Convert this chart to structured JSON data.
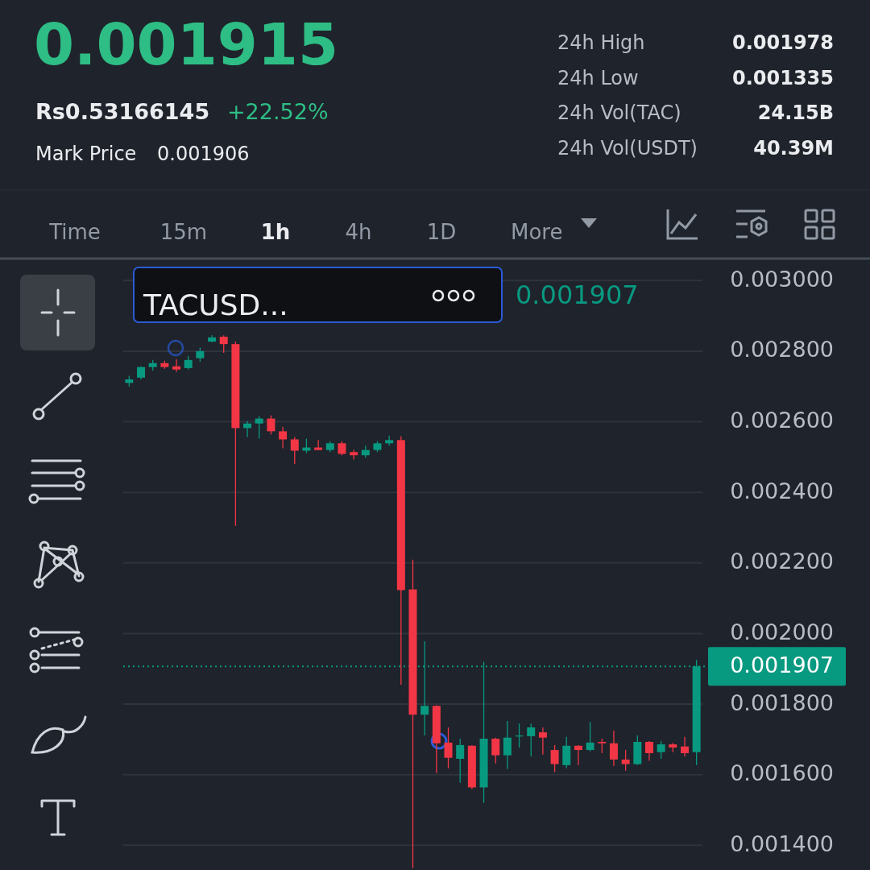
{
  "chart_data": {
    "type": "candlestick",
    "title": "0.001915",
    "annotations": [
      "Rs0.53166145",
      "+22.52%",
      "Mark Price",
      "0.001906",
      "24h High",
      "0.001978",
      "24h Low",
      "0.001335",
      "24h Vol(TAC)",
      "24.15B",
      "24h Vol(USDT)",
      "40.39M",
      "Time",
      "15m",
      "1h",
      "4h",
      "1D",
      "More",
      "TACUSD...",
      "0.001907"
    ],
    "categories": [
      null,
      null,
      null,
      null,
      null,
      null,
      null,
      null,
      null,
      null,
      null,
      null,
      null,
      null,
      null,
      null,
      null,
      null,
      null,
      null,
      null,
      null,
      null,
      null,
      null,
      null,
      null,
      null,
      null,
      null,
      null,
      null,
      null,
      null,
      null,
      null,
      null,
      null,
      null,
      null,
      null,
      null,
      null,
      null,
      null,
      null,
      null,
      null,
      null
    ],
    "ylim": [
      0.00133,
      0.00306
    ],
    "yticks": [
      {
        "value": 0.0014,
        "label": "0.001400"
      },
      {
        "value": 0.0016,
        "label": "0.001600"
      },
      {
        "value": 0.0018,
        "label": "0.001800"
      },
      {
        "value": 0.002,
        "label": "0.002000"
      },
      {
        "value": 0.0022,
        "label": "0.002200"
      },
      {
        "value": 0.0024,
        "label": "0.002400"
      },
      {
        "value": 0.0026,
        "label": "0.002600"
      },
      {
        "value": 0.0028,
        "label": "0.002800"
      },
      {
        "value": 0.003,
        "label": "0.003000"
      }
    ],
    "grid": "y",
    "colors": [
      "#089981",
      "#089981",
      "#089981",
      "#f23645",
      "#f23645",
      "#089981",
      "#089981",
      "#089981",
      "#f23645",
      "#f23645",
      "#089981",
      "#089981",
      "#f23645",
      "#f23645",
      "#f23645",
      "#089981",
      "#f23645",
      "#089981",
      "#f23645",
      "#f23645",
      "#089981",
      "#089981",
      "#089981",
      "#f23645",
      "#f23645",
      "#089981",
      "#f23645",
      "#f23645",
      "#089981",
      "#f23645",
      "#089981",
      "#f23645",
      "#089981",
      "#089981",
      "#089981",
      "#f23645",
      "#f23645",
      "#089981",
      "#f23645",
      "#089981",
      "#f23645",
      "#f23645",
      "#f23645",
      "#089981",
      "#f23645",
      "#089981",
      "#f23645",
      "#f23645",
      "#089981"
    ],
    "ref_lines": [
      {
        "axis": "y",
        "value": 0.001907,
        "label": "0.001907",
        "color": "#089981",
        "line_style": "dotted"
      }
    ],
    "ohlc": [
      [
        0.00271,
        0.00273,
        0.0027,
        0.00272
      ],
      [
        0.002725,
        0.002757,
        0.00272,
        0.002755
      ],
      [
        0.002755,
        0.002775,
        0.002745,
        0.002766
      ],
      [
        0.002766,
        0.002773,
        0.00275,
        0.002755
      ],
      [
        0.002757,
        0.002777,
        0.002741,
        0.002748
      ],
      [
        0.002752,
        0.002786,
        0.002748,
        0.002775
      ],
      [
        0.00278,
        0.00281,
        0.00277,
        0.0028
      ],
      [
        0.002827,
        0.002845,
        0.002825,
        0.002839
      ],
      [
        0.002841,
        0.002845,
        0.002795,
        0.00282
      ],
      [
        0.00282,
        0.002827,
        0.002305,
        0.002582
      ],
      [
        0.002582,
        0.002602,
        0.002557,
        0.002595
      ],
      [
        0.002595,
        0.002616,
        0.002552,
        0.002609
      ],
      [
        0.002609,
        0.002618,
        0.002564,
        0.002573
      ],
      [
        0.002573,
        0.002586,
        0.002525,
        0.00255
      ],
      [
        0.00255,
        0.002557,
        0.00248,
        0.002518
      ],
      [
        0.002518,
        0.002552,
        0.002511,
        0.002527
      ],
      [
        0.002527,
        0.002548,
        0.00252,
        0.00252
      ],
      [
        0.00252,
        0.002545,
        0.002514,
        0.002539
      ],
      [
        0.002539,
        0.002545,
        0.002505,
        0.002509
      ],
      [
        0.002514,
        0.00252,
        0.002493,
        0.002505
      ],
      [
        0.002505,
        0.002532,
        0.002498,
        0.00252
      ],
      [
        0.00252,
        0.002545,
        0.002514,
        0.002539
      ],
      [
        0.002539,
        0.002561,
        0.002532,
        0.002548
      ],
      [
        0.002548,
        0.002559,
        0.001855,
        0.002123
      ],
      [
        0.002125,
        0.002209,
        0.001335,
        0.00177
      ],
      [
        0.00177,
        0.001978,
        0.001711,
        0.001795
      ],
      [
        0.001795,
        0.001797,
        0.001605,
        0.001689
      ],
      [
        0.001691,
        0.001734,
        0.001618,
        0.001648
      ],
      [
        0.001645,
        0.001702,
        0.001577,
        0.001684
      ],
      [
        0.001682,
        0.001684,
        0.001559,
        0.001564
      ],
      [
        0.001564,
        0.00192,
        0.00152,
        0.001702
      ],
      [
        0.001702,
        0.001705,
        0.001632,
        0.001655
      ],
      [
        0.001655,
        0.001752,
        0.001616,
        0.001705
      ],
      [
        0.001709,
        0.001745,
        0.001677,
        0.001711
      ],
      [
        0.001709,
        0.001745,
        0.001652,
        0.001734
      ],
      [
        0.00172,
        0.001734,
        0.001657,
        0.001705
      ],
      [
        0.00167,
        0.001684,
        0.001607,
        0.00163
      ],
      [
        0.001627,
        0.001707,
        0.001618,
        0.001682
      ],
      [
        0.001682,
        0.001684,
        0.001627,
        0.00167
      ],
      [
        0.00167,
        0.00175,
        0.001666,
        0.001691
      ],
      [
        0.001693,
        0.001702,
        0.001661,
        0.001689
      ],
      [
        0.001689,
        0.001725,
        0.001625,
        0.001643
      ],
      [
        0.001643,
        0.00167,
        0.001611,
        0.00163
      ],
      [
        0.00163,
        0.001711,
        0.001627,
        0.001693
      ],
      [
        0.001693,
        0.001695,
        0.001639,
        0.001661
      ],
      [
        0.001664,
        0.001695,
        0.001645,
        0.001686
      ],
      [
        0.001686,
        0.00169,
        0.001664,
        0.001677
      ],
      [
        0.00168,
        0.001707,
        0.001652,
        0.001661
      ],
      [
        0.001664,
        0.001925,
        0.001627,
        0.001907
      ]
    ]
  }
}
